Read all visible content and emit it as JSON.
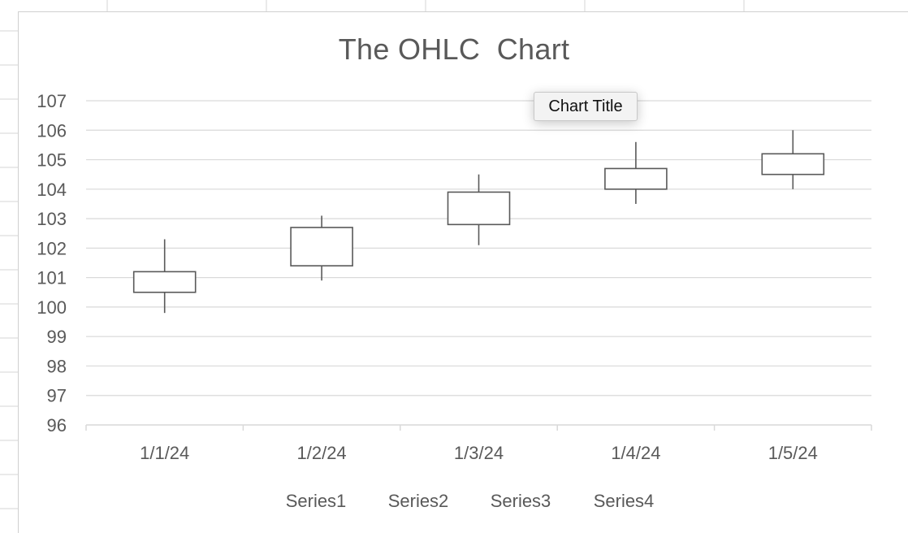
{
  "chart_data": {
    "type": "ohlc",
    "title": "The OHLC  Chart",
    "categories": [
      "1/1/24",
      "1/2/24",
      "1/3/24",
      "1/4/24",
      "1/5/24"
    ],
    "series": [
      {
        "name": "Series1",
        "values": [
          100.5,
          101.4,
          102.8,
          104.0,
          104.5
        ]
      },
      {
        "name": "Series2",
        "values": [
          102.3,
          103.1,
          104.5,
          105.6,
          106.0
        ]
      },
      {
        "name": "Series3",
        "values": [
          99.8,
          100.9,
          102.1,
          103.5,
          104.0
        ]
      },
      {
        "name": "Series4",
        "values": [
          101.2,
          102.7,
          103.9,
          104.7,
          105.2
        ]
      }
    ],
    "ylim": [
      96,
      107
    ],
    "yticks": [
      107,
      106,
      105,
      104,
      103,
      102,
      101,
      100,
      99,
      98,
      97,
      96
    ],
    "grid": true,
    "legend_position": "bottom",
    "colors": {
      "box": "#595959",
      "grid": "#d9d9d9",
      "text": "#595959"
    }
  },
  "tooltip": {
    "label": "Chart Title"
  }
}
